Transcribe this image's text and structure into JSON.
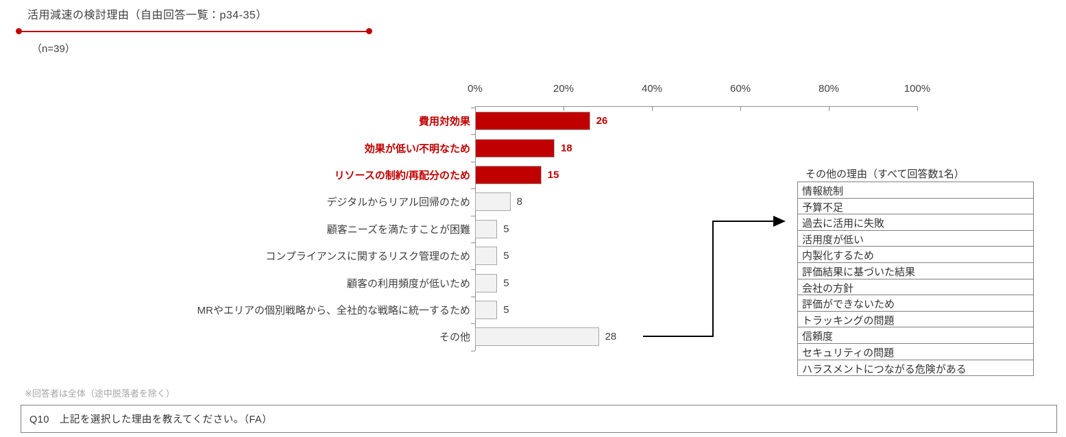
{
  "header": {
    "title": "活用減速の検討理由（自由回答一覧：p34-35）",
    "sample_size": "（n=39）"
  },
  "chart_data": {
    "type": "bar",
    "orientation": "horizontal",
    "title": "活用減速の検討理由（自由回答一覧：p34-35）",
    "n": 39,
    "unit": "%",
    "categories": [
      "費用対効果",
      "効果が低い/不明なため",
      "リソースの制約/再配分のため",
      "デジタルからリアル回帰のため",
      "顧客ニーズを満たすことが困難",
      "コンプライアンスに関するリスク管理のため",
      "顧客の利用頻度が低いため",
      "MRやエリアの個別戦略から、全社的な戦略に統一するため",
      "その他"
    ],
    "values": [
      26,
      18,
      15,
      8,
      5,
      5,
      5,
      5,
      28
    ],
    "highlighted": [
      true,
      true,
      true,
      false,
      false,
      false,
      false,
      false,
      false
    ],
    "xlim": [
      0,
      100
    ],
    "x_tick_labels": [
      "0%",
      "20%",
      "40%",
      "60%",
      "80%",
      "100%"
    ],
    "grid": false,
    "bar_color_highlight": "#C00000",
    "bar_color_normal": "#F2F2F2",
    "bar_border_color": "#A6A6A6"
  },
  "other_table": {
    "title": "その他の理由（すべて回答数1名）",
    "rows": [
      "情報統制",
      "予算不足",
      "過去に活用に失敗",
      "活用度が低い",
      "内製化するため",
      "評価結果に基づいた結果",
      "会社の方針",
      "評価ができないため",
      "トラッキングの問題",
      "信頼度",
      "セキュリティの問題",
      "ハラスメントにつながる危険がある"
    ]
  },
  "footer": {
    "note": "※回答者は全体（途中脱落者を除く）",
    "question": "Q10　上記を選択した理由を教えてください。（FA）"
  },
  "colors": {
    "accent_red": "#C00000",
    "bar_gray_fill": "#F2F2F2",
    "bar_border": "#A6A6A6",
    "axis_line": "#8C8C8C",
    "muted_text": "#A6A6A6",
    "body_text": "#3F3F3F"
  }
}
